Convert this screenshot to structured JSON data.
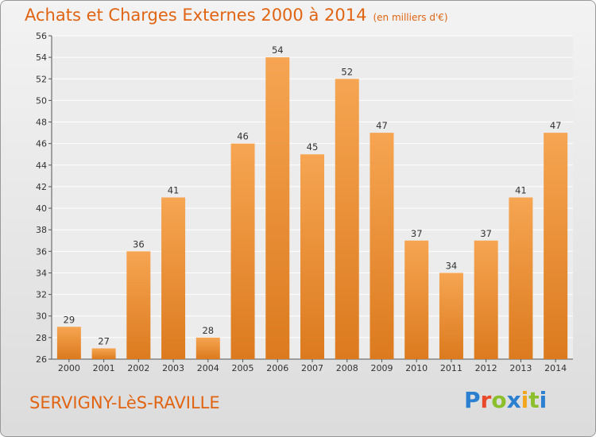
{
  "header": {
    "title": "Achats et Charges Externes 2000 à 2014",
    "unit": "(en milliers d'€)"
  },
  "footer": {
    "city": "SERVIGNY-LèS-RAVILLE",
    "logo": "Proxiti"
  },
  "colors": {
    "accent": "#e06412",
    "bar_top": "#f6a552",
    "bar_bottom": "#dc7a1e"
  },
  "chart_data": {
    "type": "bar",
    "title": "Achats et Charges Externes 2000 à 2014",
    "subtitle": "(en milliers d'€)",
    "categories": [
      "2000",
      "2001",
      "2002",
      "2003",
      "2004",
      "2005",
      "2006",
      "2007",
      "2008",
      "2009",
      "2010",
      "2011",
      "2012",
      "2013",
      "2014"
    ],
    "values": [
      29,
      27,
      36,
      41,
      28,
      46,
      54,
      45,
      52,
      47,
      37,
      34,
      37,
      41,
      47
    ],
    "ylim": [
      26,
      56
    ],
    "yticks": [
      26,
      28,
      30,
      32,
      34,
      36,
      38,
      40,
      42,
      44,
      46,
      48,
      50,
      52,
      54,
      56
    ],
    "grid": true,
    "data_labels": true
  }
}
